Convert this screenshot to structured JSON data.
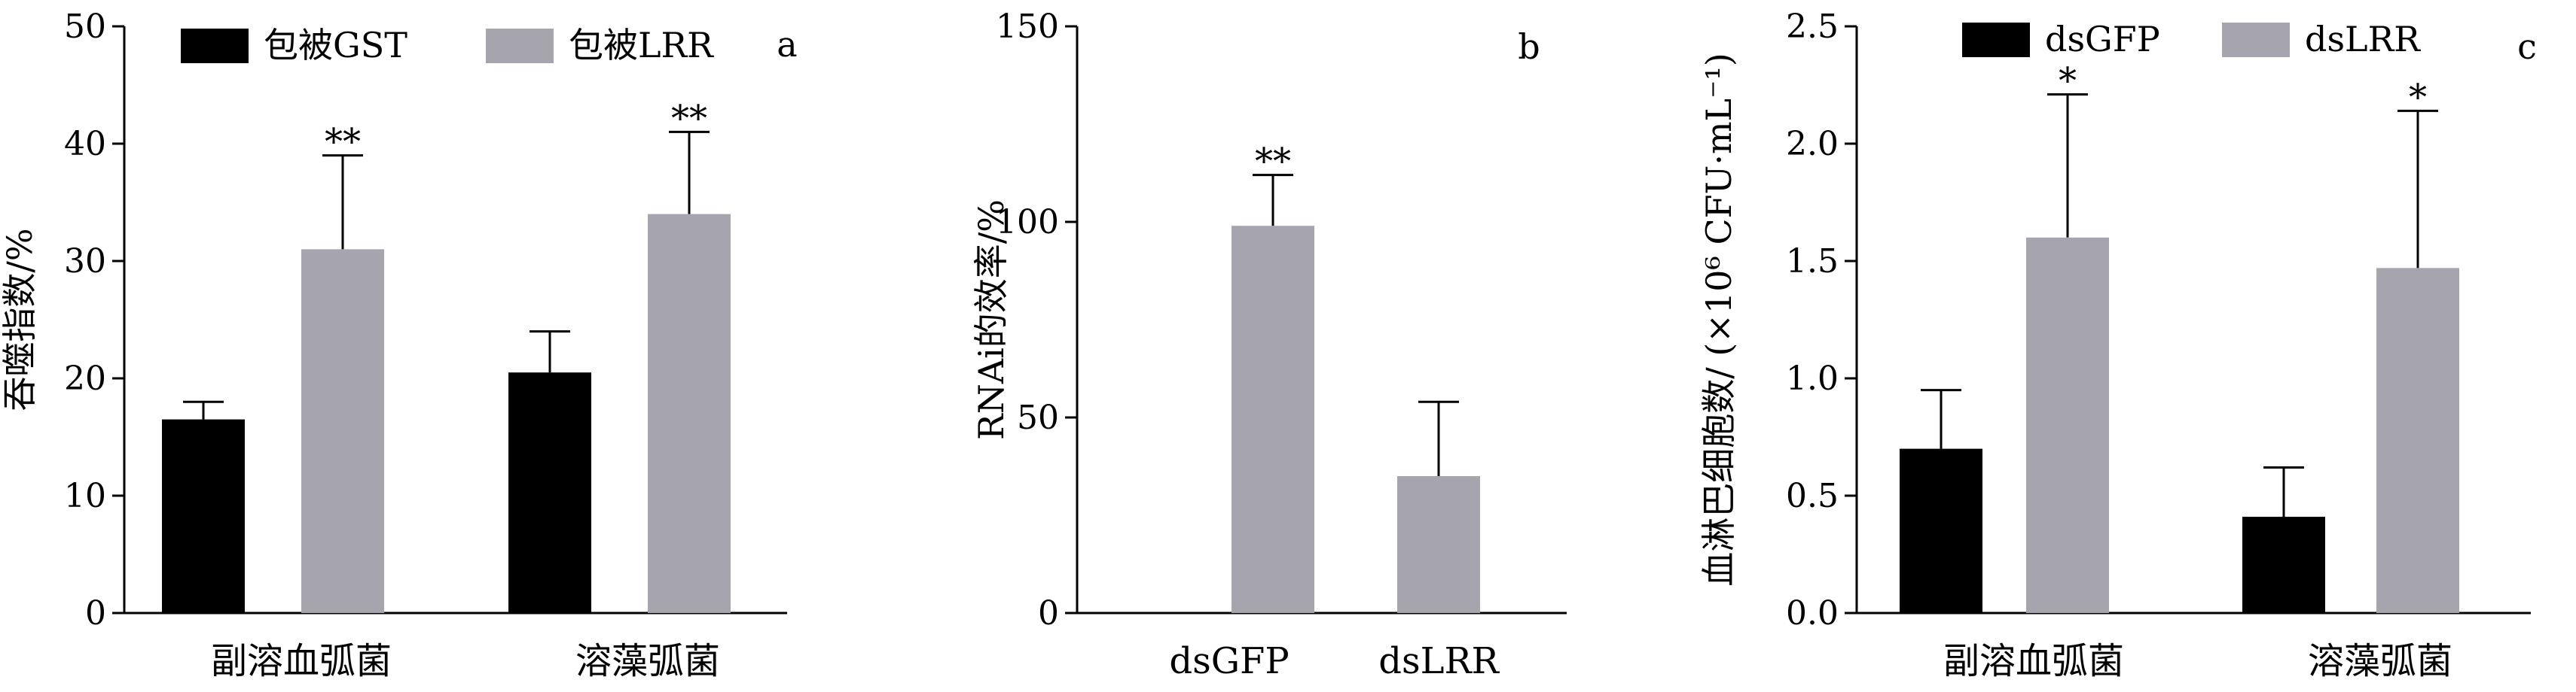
{
  "colors": {
    "black_bar": "#000000",
    "gray_bar": "#a6a4ac",
    "axis": "#000000"
  },
  "chart_data": [
    {
      "panel_label": "a",
      "type": "bar",
      "categories": [
        "副溶血弧菌",
        "溶藻弧菌"
      ],
      "ylabel": "吞噬指数/%",
      "ylim": [
        0,
        50
      ],
      "yticks": [
        0,
        10,
        20,
        30,
        40,
        50
      ],
      "legend_position": "top-left",
      "series": [
        {
          "name": "包被GST",
          "color": "#000000",
          "values": [
            16.5,
            20.5
          ],
          "errors": [
            1.5,
            3.5
          ],
          "significance": [
            "",
            ""
          ]
        },
        {
          "name": "包被LRR",
          "color": "#a6a4ac",
          "values": [
            31,
            34
          ],
          "errors": [
            8,
            7
          ],
          "significance": [
            "**",
            "**"
          ]
        }
      ]
    },
    {
      "panel_label": "b",
      "type": "bar",
      "categories": [
        "dsGFP",
        "dsLRR"
      ],
      "ylabel": "RNAi的效率/%",
      "ylim": [
        0,
        150
      ],
      "yticks": [
        0,
        50,
        100,
        150
      ],
      "series": [
        {
          "color": "#a6a4ac",
          "values": [
            99,
            35
          ],
          "errors": [
            13,
            19
          ],
          "significance": [
            "**",
            ""
          ]
        }
      ]
    },
    {
      "panel_label": "c",
      "type": "bar",
      "categories": [
        "副溶血弧菌",
        "溶藻弧菌"
      ],
      "ylabel": "血淋巴细胞数/ (×10⁶ CFU·mL⁻¹)",
      "ylim": [
        0,
        2.5
      ],
      "yticks": [
        0.0,
        0.5,
        1.0,
        1.5,
        2.0,
        2.5
      ],
      "ytick_decimals": 1,
      "legend_position": "top",
      "series": [
        {
          "name": "dsGFP",
          "color": "#000000",
          "values": [
            0.7,
            0.41
          ],
          "errors": [
            0.25,
            0.21
          ],
          "significance": [
            "",
            ""
          ]
        },
        {
          "name": "dsLRR",
          "color": "#a6a4ac",
          "values": [
            1.6,
            1.47
          ],
          "errors": [
            0.61,
            0.67
          ],
          "significance": [
            "*",
            "*"
          ]
        }
      ]
    }
  ]
}
